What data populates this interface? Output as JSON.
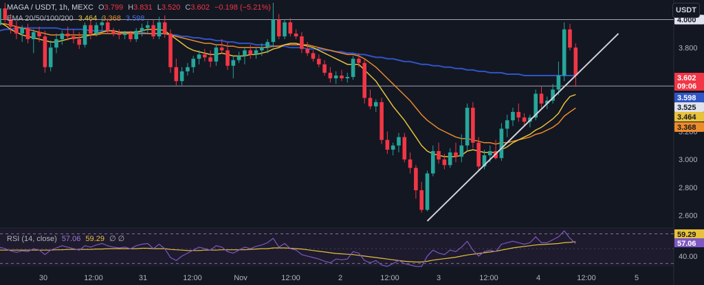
{
  "header": {
    "symbol": "MAGA / USDT, 1h, MEXC",
    "open_label": "O",
    "open": "3.799",
    "high_label": "H",
    "high": "3.831",
    "low_label": "L",
    "low": "3.520",
    "close_label": "C",
    "close": "3.602",
    "change": "−0.198 (−5.21%)",
    "ema_label": "EMA 20/50/100/200",
    "ema20": "3.464",
    "ema50": "3.368",
    "ema100": "3.598"
  },
  "rsi_header": {
    "label": "RSI (14, close)",
    "rsi": "57.06",
    "ma": "59.29",
    "extra": "∅ ∅"
  },
  "currency_button": "USDT",
  "colors": {
    "up": "#26a69a",
    "down": "#f23645",
    "ema20": "#e8c23c",
    "ema50": "#ec8b2a",
    "ema100": "#2f55c8",
    "rsi": "#7e57c2",
    "rsi_ma": "#e8c23c",
    "trendline": "#d1d4dc"
  },
  "chart_data": [
    {
      "type": "candlestick",
      "title": "MAGA / USDT, 1h, MEXC",
      "x_ticks": [
        "30",
        "12:00",
        "31",
        "12:00",
        "Nov",
        "12:00",
        "2",
        "12:00",
        "3",
        "12:00",
        "4",
        "12:00",
        "5"
      ],
      "y_ticks": [
        "3.800",
        "3.600",
        "3.400",
        "3.200",
        "3.000",
        "2.800",
        "2.600"
      ],
      "ylim": [
        2.52,
        4.14
      ],
      "horizontal_lines": [
        4.0,
        3.525
      ],
      "price_tags": [
        {
          "value": "4.000",
          "role": "line"
        },
        {
          "value": "3.602",
          "sub": "09:06",
          "role": "last"
        },
        {
          "value": "3.598",
          "role": "ema100"
        },
        {
          "value": "3.525",
          "role": "line"
        },
        {
          "value": "3.464",
          "role": "ema20"
        },
        {
          "value": "3.368",
          "role": "ema50"
        }
      ],
      "candles": [
        [
          3.96,
          4.1,
          3.95,
          4.08
        ],
        [
          4.08,
          4.12,
          3.98,
          4.0
        ],
        [
          4.0,
          4.04,
          3.9,
          3.95
        ],
        [
          3.95,
          3.99,
          3.86,
          3.9
        ],
        [
          3.9,
          3.96,
          3.84,
          3.94
        ],
        [
          3.94,
          3.97,
          3.83,
          3.86
        ],
        [
          3.86,
          3.93,
          3.76,
          3.91
        ],
        [
          3.91,
          3.95,
          3.84,
          3.88
        ],
        [
          3.88,
          3.92,
          3.62,
          3.66
        ],
        [
          3.66,
          3.85,
          3.63,
          3.8
        ],
        [
          3.8,
          3.9,
          3.76,
          3.86
        ],
        [
          3.86,
          3.92,
          3.82,
          3.9
        ],
        [
          3.9,
          3.95,
          3.85,
          3.88
        ],
        [
          3.88,
          3.93,
          3.83,
          3.86
        ],
        [
          3.86,
          3.91,
          3.79,
          3.82
        ],
        [
          3.82,
          3.98,
          3.8,
          3.96
        ],
        [
          3.96,
          4.0,
          3.86,
          3.9
        ],
        [
          3.9,
          3.98,
          3.88,
          3.96
        ],
        [
          3.96,
          4.02,
          3.92,
          3.98
        ],
        [
          3.98,
          4.01,
          3.9,
          3.92
        ],
        [
          3.92,
          3.94,
          3.88,
          3.9
        ],
        [
          3.9,
          3.93,
          3.86,
          3.89
        ],
        [
          3.89,
          3.92,
          3.86,
          3.9
        ],
        [
          3.9,
          3.92,
          3.84,
          3.86
        ],
        [
          3.86,
          3.94,
          3.84,
          3.92
        ],
        [
          3.92,
          3.97,
          3.88,
          3.94
        ],
        [
          3.94,
          3.99,
          3.9,
          3.96
        ],
        [
          3.96,
          4.0,
          3.86,
          3.88
        ],
        [
          3.88,
          4.02,
          3.86,
          3.98
        ],
        [
          3.98,
          4.03,
          3.87,
          3.9
        ],
        [
          3.9,
          3.93,
          3.62,
          3.66
        ],
        [
          3.66,
          3.72,
          3.53,
          3.56
        ],
        [
          3.56,
          3.66,
          3.53,
          3.63
        ],
        [
          3.63,
          3.69,
          3.6,
          3.66
        ],
        [
          3.66,
          3.74,
          3.62,
          3.72
        ],
        [
          3.72,
          3.78,
          3.68,
          3.75
        ],
        [
          3.75,
          3.79,
          3.7,
          3.73
        ],
        [
          3.73,
          3.78,
          3.66,
          3.7
        ],
        [
          3.7,
          3.82,
          3.67,
          3.8
        ],
        [
          3.8,
          3.86,
          3.76,
          3.78
        ],
        [
          3.78,
          3.84,
          3.64,
          3.67
        ],
        [
          3.67,
          3.74,
          3.58,
          3.71
        ],
        [
          3.71,
          3.77,
          3.69,
          3.74
        ],
        [
          3.74,
          3.8,
          3.68,
          3.78
        ],
        [
          3.78,
          3.82,
          3.72,
          3.75
        ],
        [
          3.75,
          3.8,
          3.72,
          3.78
        ],
        [
          3.78,
          3.83,
          3.74,
          3.8
        ],
        [
          3.8,
          3.86,
          3.76,
          3.84
        ],
        [
          3.84,
          4.12,
          3.8,
          4.0
        ],
        [
          4.0,
          4.04,
          3.86,
          3.88
        ],
        [
          3.88,
          4.0,
          3.86,
          3.98
        ],
        [
          3.98,
          4.01,
          3.88,
          3.9
        ],
        [
          3.9,
          3.93,
          3.86,
          3.88
        ],
        [
          3.88,
          3.91,
          3.76,
          3.79
        ],
        [
          3.79,
          3.84,
          3.74,
          3.76
        ],
        [
          3.76,
          3.78,
          3.7,
          3.72
        ],
        [
          3.72,
          3.75,
          3.66,
          3.68
        ],
        [
          3.68,
          3.71,
          3.6,
          3.62
        ],
        [
          3.62,
          3.66,
          3.55,
          3.58
        ],
        [
          3.58,
          3.63,
          3.54,
          3.6
        ],
        [
          3.6,
          3.64,
          3.56,
          3.58
        ],
        [
          3.58,
          3.62,
          3.55,
          3.59
        ],
        [
          3.59,
          3.74,
          3.57,
          3.72
        ],
        [
          3.72,
          3.76,
          3.66,
          3.69
        ],
        [
          3.69,
          3.72,
          3.4,
          3.44
        ],
        [
          3.44,
          3.5,
          3.36,
          3.38
        ],
        [
          3.38,
          3.43,
          3.34,
          3.41
        ],
        [
          3.41,
          3.44,
          3.11,
          3.14
        ],
        [
          3.14,
          3.2,
          3.04,
          3.07
        ],
        [
          3.07,
          3.12,
          3.03,
          3.1
        ],
        [
          3.1,
          3.19,
          3.05,
          3.16
        ],
        [
          3.16,
          3.19,
          2.98,
          3.0
        ],
        [
          3.0,
          3.05,
          2.9,
          2.94
        ],
        [
          2.94,
          2.96,
          2.72,
          2.78
        ],
        [
          2.78,
          2.84,
          2.62,
          2.64
        ],
        [
          2.64,
          2.92,
          2.63,
          2.9
        ],
        [
          2.9,
          3.1,
          2.88,
          3.06
        ],
        [
          3.06,
          3.12,
          2.97,
          3.0
        ],
        [
          3.0,
          3.04,
          2.93,
          2.96
        ],
        [
          2.96,
          3.08,
          2.94,
          3.05
        ],
        [
          3.05,
          3.12,
          2.98,
          3.02
        ],
        [
          3.02,
          3.18,
          2.98,
          3.1
        ],
        [
          3.1,
          3.4,
          3.06,
          3.37
        ],
        [
          3.37,
          3.41,
          3.08,
          3.12
        ],
        [
          3.12,
          3.16,
          2.92,
          2.95
        ],
        [
          2.95,
          3.07,
          2.93,
          3.03
        ],
        [
          3.03,
          3.1,
          2.98,
          3.06
        ],
        [
          3.06,
          3.14,
          3.0,
          3.01
        ],
        [
          3.01,
          3.26,
          2.99,
          3.22
        ],
        [
          3.22,
          3.32,
          3.16,
          3.28
        ],
        [
          3.28,
          3.37,
          3.24,
          3.34
        ],
        [
          3.34,
          3.4,
          3.27,
          3.3
        ],
        [
          3.3,
          3.33,
          3.24,
          3.27
        ],
        [
          3.27,
          3.32,
          3.23,
          3.3
        ],
        [
          3.3,
          3.5,
          3.28,
          3.47
        ],
        [
          3.47,
          3.52,
          3.37,
          3.4
        ],
        [
          3.4,
          3.45,
          3.36,
          3.42
        ],
        [
          3.42,
          3.54,
          3.4,
          3.5
        ],
        [
          3.5,
          3.7,
          3.46,
          3.6
        ],
        [
          3.6,
          3.98,
          3.56,
          3.93
        ],
        [
          3.93,
          3.97,
          3.78,
          3.8
        ],
        [
          3.8,
          3.83,
          3.52,
          3.6
        ]
      ],
      "ema20": [
        3.98,
        3.96,
        3.93,
        3.91,
        3.89,
        3.88,
        3.87,
        3.86,
        3.85,
        3.84,
        3.84,
        3.85,
        3.86,
        3.87,
        3.87,
        3.88,
        3.89,
        3.9,
        3.91,
        3.92,
        3.92,
        3.91,
        3.91,
        3.91,
        3.91,
        3.92,
        3.93,
        3.93,
        3.93,
        3.92,
        3.89,
        3.86,
        3.83,
        3.8,
        3.78,
        3.77,
        3.76,
        3.75,
        3.75,
        3.76,
        3.75,
        3.74,
        3.74,
        3.74,
        3.75,
        3.75,
        3.76,
        3.77,
        3.79,
        3.8,
        3.82,
        3.83,
        3.83,
        3.82,
        3.81,
        3.8,
        3.78,
        3.76,
        3.74,
        3.72,
        3.7,
        3.68,
        3.68,
        3.68,
        3.64,
        3.6,
        3.56,
        3.5,
        3.44,
        3.38,
        3.33,
        3.28,
        3.22,
        3.16,
        3.1,
        3.06,
        3.04,
        3.03,
        3.02,
        3.02,
        3.02,
        3.03,
        3.06,
        3.07,
        3.06,
        3.05,
        3.05,
        3.05,
        3.07,
        3.09,
        3.12,
        3.14,
        3.16,
        3.18,
        3.21,
        3.23,
        3.26,
        3.29,
        3.33,
        3.4,
        3.45,
        3.464
      ],
      "ema50": [
        3.97,
        3.97,
        3.96,
        3.95,
        3.94,
        3.93,
        3.92,
        3.91,
        3.9,
        3.89,
        3.89,
        3.89,
        3.89,
        3.89,
        3.89,
        3.89,
        3.89,
        3.89,
        3.9,
        3.9,
        3.9,
        3.9,
        3.9,
        3.9,
        3.9,
        3.9,
        3.9,
        3.9,
        3.9,
        3.9,
        3.89,
        3.88,
        3.87,
        3.86,
        3.85,
        3.84,
        3.83,
        3.83,
        3.82,
        3.82,
        3.81,
        3.81,
        3.8,
        3.8,
        3.8,
        3.8,
        3.8,
        3.8,
        3.81,
        3.81,
        3.82,
        3.82,
        3.82,
        3.82,
        3.82,
        3.81,
        3.8,
        3.79,
        3.78,
        3.77,
        3.76,
        3.75,
        3.75,
        3.74,
        3.72,
        3.69,
        3.66,
        3.62,
        3.58,
        3.54,
        3.5,
        3.46,
        3.42,
        3.37,
        3.32,
        3.28,
        3.25,
        3.22,
        3.2,
        3.18,
        3.16,
        3.15,
        3.15,
        3.14,
        3.13,
        3.12,
        3.12,
        3.11,
        3.12,
        3.12,
        3.13,
        3.14,
        3.15,
        3.16,
        3.18,
        3.19,
        3.21,
        3.23,
        3.26,
        3.31,
        3.34,
        3.368
      ],
      "ema100": [
        3.92,
        3.93,
        3.93,
        3.94,
        3.94,
        3.94,
        3.94,
        3.94,
        3.94,
        3.94,
        3.94,
        3.93,
        3.93,
        3.93,
        3.93,
        3.93,
        3.92,
        3.92,
        3.92,
        3.92,
        3.92,
        3.91,
        3.91,
        3.91,
        3.91,
        3.91,
        3.9,
        3.9,
        3.9,
        3.9,
        3.89,
        3.89,
        3.88,
        3.88,
        3.87,
        3.87,
        3.86,
        3.86,
        3.85,
        3.85,
        3.84,
        3.84,
        3.83,
        3.83,
        3.83,
        3.82,
        3.82,
        3.82,
        3.81,
        3.81,
        3.81,
        3.8,
        3.8,
        3.8,
        3.79,
        3.79,
        3.79,
        3.78,
        3.78,
        3.77,
        3.77,
        3.76,
        3.76,
        3.75,
        3.75,
        3.74,
        3.73,
        3.73,
        3.72,
        3.72,
        3.71,
        3.7,
        3.7,
        3.69,
        3.68,
        3.68,
        3.67,
        3.67,
        3.66,
        3.66,
        3.65,
        3.65,
        3.64,
        3.64,
        3.63,
        3.63,
        3.62,
        3.62,
        3.62,
        3.61,
        3.61,
        3.61,
        3.6,
        3.6,
        3.6,
        3.6,
        3.6,
        3.6,
        3.6,
        3.6,
        3.6,
        3.598
      ],
      "trendline": {
        "from": {
          "candle": 75,
          "price": 2.56
        },
        "to": {
          "candle": 108.5,
          "price": 3.9
        }
      }
    },
    {
      "type": "line",
      "title": "RSI (14, close)",
      "y_ticks": [
        "40.00"
      ],
      "ylim": [
        26,
        76
      ],
      "bands": [
        70,
        30
      ],
      "level_tags": [
        {
          "value": "59.29",
          "role": "ma"
        },
        {
          "value": "57.06",
          "role": "rsi"
        }
      ],
      "rsi": [
        52,
        50,
        47,
        45,
        47,
        46,
        50,
        48,
        42,
        48,
        51,
        54,
        52,
        50,
        48,
        54,
        52,
        55,
        57,
        54,
        52,
        51,
        52,
        50,
        54,
        56,
        57,
        50,
        56,
        50,
        38,
        34,
        40,
        44,
        48,
        52,
        50,
        48,
        54,
        52,
        46,
        44,
        48,
        52,
        50,
        53,
        55,
        58,
        64,
        52,
        57,
        50,
        48,
        42,
        40,
        38,
        36,
        33,
        31,
        36,
        35,
        36,
        46,
        44,
        34,
        31,
        34,
        28,
        26,
        30,
        34,
        30,
        28,
        26,
        26,
        40,
        48,
        44,
        42,
        48,
        46,
        52,
        60,
        48,
        40,
        46,
        48,
        46,
        56,
        58,
        60,
        58,
        56,
        58,
        66,
        58,
        58,
        62,
        66,
        74,
        64,
        57.06
      ],
      "rsi_ma": [
        48,
        48,
        48,
        48,
        48,
        48,
        48,
        48,
        48,
        48,
        48.5,
        48.5,
        49,
        49,
        49,
        49,
        49,
        49.5,
        49.5,
        50,
        50,
        50,
        50,
        50,
        50,
        50.5,
        50.5,
        50,
        50,
        50,
        49,
        48.5,
        48,
        47.5,
        47.5,
        47.5,
        48,
        48,
        48,
        48.5,
        48.5,
        48.5,
        48.5,
        48.5,
        49,
        49.5,
        50,
        50,
        51,
        51,
        51,
        50.5,
        50,
        49.5,
        48.5,
        47.5,
        46.5,
        45.5,
        44.5,
        43.5,
        43,
        42.5,
        42,
        41,
        40,
        39,
        38,
        37,
        36,
        35,
        34,
        33,
        32.5,
        32,
        32,
        33,
        34.5,
        35.5,
        36.5,
        37.5,
        38.5,
        40,
        41.5,
        42.5,
        43.5,
        44.5,
        45.5,
        46.5,
        48,
        49.5,
        51,
        52,
        53,
        54,
        55,
        55.5,
        56,
        56.5,
        57,
        58,
        58.5,
        59.29
      ]
    }
  ]
}
